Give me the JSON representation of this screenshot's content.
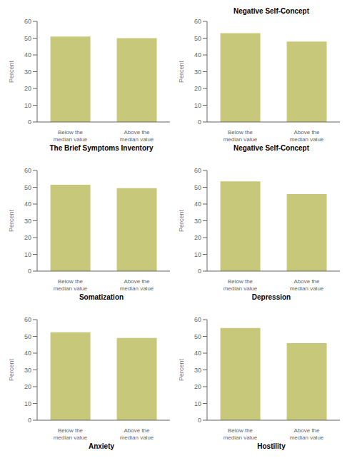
{
  "chart_data": [
    {
      "type": "bar",
      "xlabel": "The Brief Symptoms Inventory",
      "ylabel": "Percent",
      "categories": [
        "Below the median value",
        "Above the median value"
      ],
      "values": [
        51,
        50
      ],
      "color": "#c8c87a",
      "ylim": [
        0,
        60
      ],
      "yticks": [
        0,
        10,
        20,
        30,
        40,
        50,
        60
      ]
    },
    {
      "type": "bar",
      "title": "Negative Self-Concept",
      "xlabel": "Negative Self-Concept",
      "ylabel": "Percent",
      "categories": [
        "Below the median value",
        "Above the median value"
      ],
      "values": [
        53,
        48
      ],
      "color": "#c8c87a",
      "ylim": [
        0,
        60
      ],
      "yticks": [
        0,
        10,
        20,
        30,
        40,
        50,
        60
      ]
    },
    {
      "type": "bar",
      "xlabel": "Somatization",
      "ylabel": "Percent",
      "categories": [
        "Below the median value",
        "Above the median value"
      ],
      "values": [
        51.5,
        49.5
      ],
      "color": "#c8c87a",
      "ylim": [
        0,
        60
      ],
      "yticks": [
        0,
        10,
        20,
        30,
        40,
        50,
        60
      ]
    },
    {
      "type": "bar",
      "xlabel": "Depression",
      "ylabel": "Percent",
      "categories": [
        "Below the median value",
        "Above the median value"
      ],
      "values": [
        53.5,
        46
      ],
      "color": "#c8c87a",
      "ylim": [
        0,
        60
      ],
      "yticks": [
        0,
        10,
        20,
        30,
        40,
        50,
        60
      ]
    },
    {
      "type": "bar",
      "xlabel": "Anxiety",
      "ylabel": "Percent",
      "categories": [
        "Below the median value",
        "Above the median value"
      ],
      "values": [
        52.5,
        49
      ],
      "color": "#c8c87a",
      "ylim": [
        0,
        60
      ],
      "yticks": [
        0,
        10,
        20,
        30,
        40,
        50,
        60
      ]
    },
    {
      "type": "bar",
      "xlabel": "Hostility",
      "ylabel": "Percent",
      "categories": [
        "Below the median value",
        "Above the median value"
      ],
      "values": [
        55,
        46
      ],
      "color": "#c8c87a",
      "ylim": [
        0,
        60
      ],
      "yticks": [
        0,
        10,
        20,
        30,
        40,
        50,
        60
      ]
    }
  ]
}
